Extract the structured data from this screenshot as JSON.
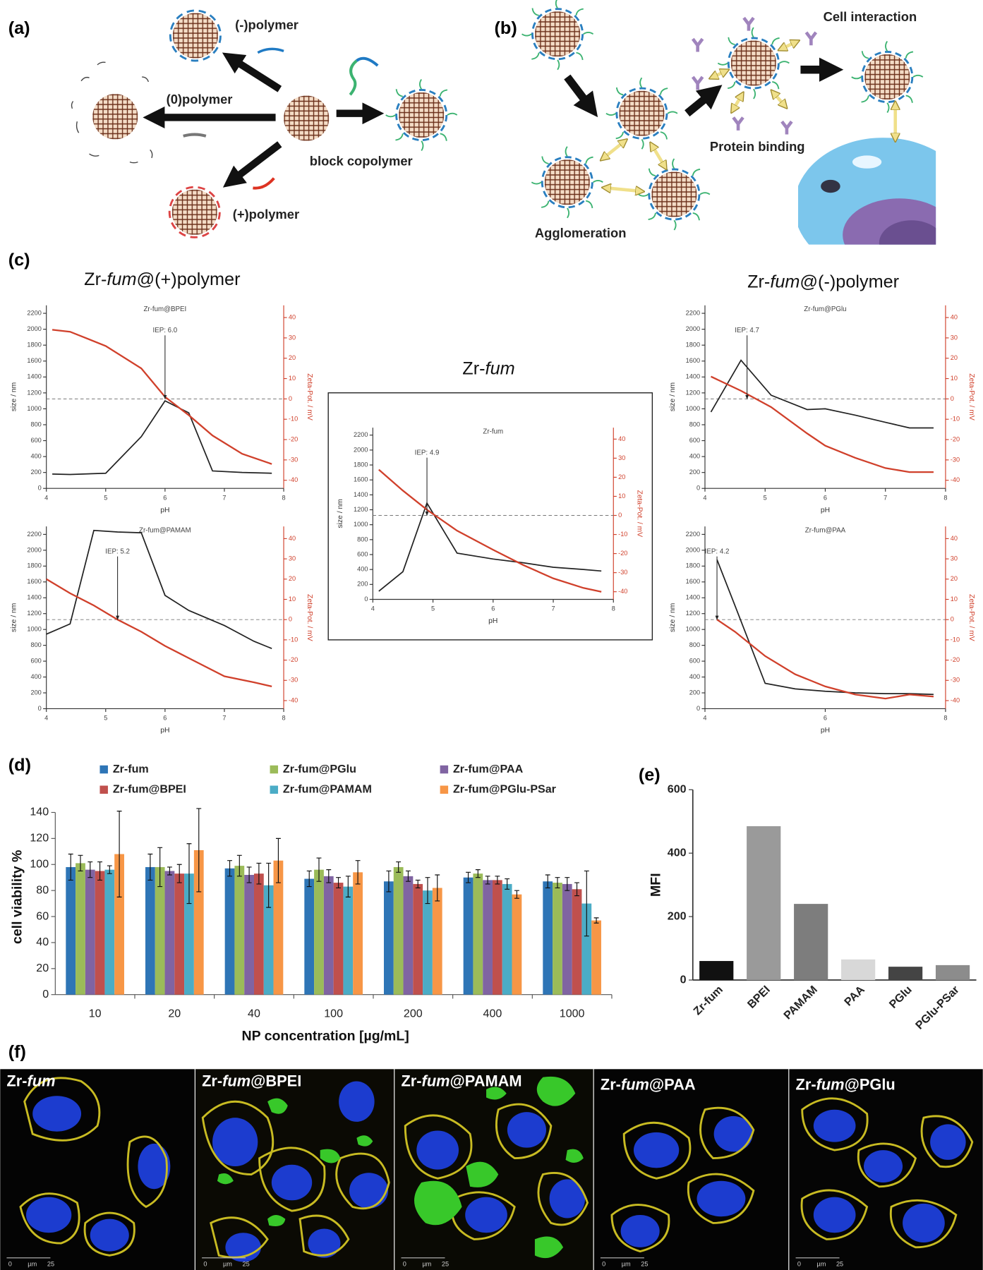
{
  "panel_labels": [
    "(a)",
    "(b)",
    "(c)",
    "(d)",
    "(e)",
    "(f)"
  ],
  "diagram_a": {
    "labels": [
      "(-)polymer",
      "(0)polymer",
      "block copolymer",
      "(+)polymer"
    ]
  },
  "diagram_b": {
    "labels": [
      "Cell interaction",
      "Protein binding",
      "Agglomeration"
    ]
  },
  "panel_c": {
    "headings": [
      [
        "Zr-",
        "fum",
        "@(+)polymer"
      ],
      [
        "Zr-",
        "fum"
      ],
      [
        "Zr-",
        "fum",
        "@(-)polymer"
      ]
    ]
  },
  "chart_data": [
    {
      "type": "line",
      "title": "Zr-fum@BPEI",
      "xlabel": "pH",
      "ylabel": "size / nm",
      "y2label": "Zeta-Pot. / mV",
      "x": [
        4.1,
        4.4,
        5.0,
        5.6,
        6.0,
        6.4,
        6.8,
        7.3,
        7.8
      ],
      "series": [
        {
          "color": "#222222",
          "values": [
            180,
            175,
            190,
            650,
            1100,
            950,
            220,
            200,
            190
          ]
        },
        {
          "color": "#d0402b",
          "axis": "y2",
          "values": [
            34,
            33,
            26,
            15,
            1,
            -8,
            -18,
            -27,
            -32
          ]
        }
      ],
      "xlim": [
        4,
        8
      ],
      "xticks": [
        4,
        5,
        6,
        7,
        8
      ],
      "ylim": [
        0,
        2300
      ],
      "yticks": [
        0,
        200,
        400,
        600,
        800,
        1000,
        1200,
        1400,
        1600,
        1800,
        2000,
        2200
      ],
      "y2lim": [
        -44,
        46
      ],
      "y2ticks": [
        -40,
        -30,
        -20,
        -10,
        0,
        10,
        20,
        30,
        40
      ],
      "reference_line": {
        "axis": "y2",
        "value": 0
      },
      "annotations": [
        {
          "text": "IEP: 6.0",
          "x": 6.0
        }
      ]
    },
    {
      "type": "line",
      "title": "Zr-fum@PAMAM",
      "xlabel": "pH",
      "ylabel": "size / nm",
      "y2label": "Zeta-Pot. / mV",
      "x": [
        4.0,
        4.4,
        4.8,
        5.2,
        5.6,
        6.0,
        6.4,
        7.0,
        7.5,
        7.8
      ],
      "series": [
        {
          "color": "#222222",
          "values": [
            940,
            1070,
            2250,
            2230,
            2220,
            1430,
            1240,
            1050,
            850,
            760
          ]
        },
        {
          "color": "#d0402b",
          "axis": "y2",
          "values": [
            20,
            13,
            7,
            0,
            -6,
            -13,
            -19,
            -28,
            -31,
            -33
          ]
        }
      ],
      "xlim": [
        4,
        8
      ],
      "xticks": [
        4,
        5,
        6,
        7,
        8
      ],
      "ylim": [
        0,
        2300
      ],
      "yticks": [
        0,
        200,
        400,
        600,
        800,
        1000,
        1200,
        1400,
        1600,
        1800,
        2000,
        2200
      ],
      "y2lim": [
        -44,
        46
      ],
      "y2ticks": [
        -40,
        -30,
        -20,
        -10,
        0,
        10,
        20,
        30,
        40
      ],
      "reference_line": {
        "axis": "y2",
        "value": 0
      },
      "annotations": [
        {
          "text": "IEP: 5.2",
          "x": 5.2
        }
      ]
    },
    {
      "type": "line",
      "title": "Zr-fum",
      "xlabel": "pH",
      "ylabel": "size / nm",
      "y2label": "Zeta-Pot. / mV",
      "x": [
        4.1,
        4.5,
        4.9,
        5.4,
        6.0,
        6.5,
        7.0,
        7.5,
        7.8
      ],
      "series": [
        {
          "color": "#222222",
          "values": [
            110,
            370,
            1290,
            620,
            540,
            490,
            430,
            400,
            380
          ]
        },
        {
          "color": "#d0402b",
          "axis": "y2",
          "values": [
            24,
            13,
            3,
            -8,
            -18,
            -26,
            -33,
            -38,
            -40
          ]
        }
      ],
      "xlim": [
        4,
        8
      ],
      "xticks": [
        4,
        5,
        6,
        7,
        8
      ],
      "ylim": [
        0,
        2300
      ],
      "yticks": [
        0,
        200,
        400,
        600,
        800,
        1000,
        1200,
        1400,
        1600,
        1800,
        2000,
        2200
      ],
      "y2lim": [
        -44,
        46
      ],
      "y2ticks": [
        -40,
        -30,
        -20,
        -10,
        0,
        10,
        20,
        30,
        40
      ],
      "reference_line": {
        "axis": "y2",
        "value": 0
      },
      "annotations": [
        {
          "text": "IEP: 4.9",
          "x": 4.9
        }
      ]
    },
    {
      "type": "line",
      "title": "Zr-fum@PGlu",
      "xlabel": "pH",
      "ylabel": "size / nm",
      "y2label": "Zeta-Pot. / mV",
      "x": [
        4.1,
        4.6,
        5.1,
        5.7,
        6.0,
        6.5,
        7.0,
        7.4,
        7.8
      ],
      "series": [
        {
          "color": "#222222",
          "values": [
            960,
            1610,
            1170,
            990,
            1000,
            920,
            830,
            760,
            760
          ]
        },
        {
          "color": "#d0402b",
          "axis": "y2",
          "values": [
            11,
            4,
            -4,
            -17,
            -23,
            -29,
            -34,
            -36,
            -36
          ]
        }
      ],
      "xlim": [
        4,
        8
      ],
      "xticks": [
        4,
        5,
        6,
        7,
        8
      ],
      "ylim": [
        0,
        2300
      ],
      "yticks": [
        0,
        200,
        400,
        600,
        800,
        1000,
        1200,
        1400,
        1600,
        1800,
        2000,
        2200
      ],
      "y2lim": [
        -44,
        46
      ],
      "y2ticks": [
        -40,
        -30,
        -20,
        -10,
        0,
        10,
        20,
        30,
        40
      ],
      "reference_line": {
        "axis": "y2",
        "value": 0
      },
      "annotations": [
        {
          "text": "IEP: 4.7",
          "x": 4.7
        }
      ]
    },
    {
      "type": "line",
      "title": "Zr-fum@PAA",
      "xlabel": "pH",
      "ylabel": "size / nm",
      "y2label": "Zeta-Pot. / mV",
      "x": [
        4.2,
        4.5,
        5.0,
        5.5,
        6.0,
        6.5,
        7.0,
        7.4,
        7.8
      ],
      "series": [
        {
          "color": "#222222",
          "values": [
            1880,
            1300,
            320,
            250,
            220,
            200,
            190,
            190,
            180
          ]
        },
        {
          "color": "#d0402b",
          "axis": "y2",
          "values": [
            0,
            -6,
            -18,
            -27,
            -33,
            -37,
            -39,
            -37,
            -38
          ]
        }
      ],
      "xlim": [
        4,
        8
      ],
      "xticks": [
        4,
        6,
        8
      ],
      "ylim": [
        0,
        2300
      ],
      "yticks": [
        0,
        200,
        400,
        600,
        800,
        1000,
        1200,
        1400,
        1600,
        1800,
        2000,
        2200
      ],
      "y2lim": [
        -44,
        46
      ],
      "y2ticks": [
        -40,
        -30,
        -20,
        -10,
        0,
        10,
        20,
        30,
        40
      ],
      "reference_line": {
        "axis": "y2",
        "value": 0
      },
      "annotations": [
        {
          "text": "IEP: 4.2",
          "x": 4.2
        }
      ]
    },
    {
      "type": "bar",
      "xlabel": "NP concentration [µg/mL]",
      "ylabel": "cell viability %",
      "categories": [
        "10",
        "20",
        "40",
        "100",
        "200",
        "400",
        "1000"
      ],
      "series": [
        {
          "name": "Zr-fum",
          "color": "#2e75b6",
          "values": [
            98,
            98,
            97,
            89,
            87,
            90,
            87
          ],
          "errors": [
            10,
            10,
            6,
            6,
            8,
            4,
            5
          ]
        },
        {
          "name": "Zr-fum@PGlu",
          "color": "#9bbb59",
          "values": [
            101,
            98,
            99,
            96,
            98,
            93,
            86
          ],
          "errors": [
            6,
            15,
            8,
            9,
            4,
            3,
            4
          ]
        },
        {
          "name": "Zr-fum@PAA",
          "color": "#8064a2",
          "values": [
            96,
            95,
            92,
            91,
            91,
            88,
            85
          ],
          "errors": [
            6,
            3,
            6,
            5,
            4,
            3,
            5
          ]
        },
        {
          "name": "Zr-fum@BPEI",
          "color": "#c0504d",
          "values": [
            95,
            93,
            93,
            86,
            85,
            88,
            81
          ],
          "errors": [
            7,
            7,
            8,
            4,
            3,
            3,
            5
          ]
        },
        {
          "name": "Zr-fum@PAMAM",
          "color": "#4bacc6",
          "values": [
            96,
            93,
            84,
            83,
            80,
            85,
            70
          ],
          "errors": [
            3,
            23,
            17,
            8,
            10,
            4,
            25
          ]
        },
        {
          "name": "Zr-fum@PGlu-PSar",
          "color": "#f79646",
          "values": [
            108,
            111,
            103,
            94,
            82,
            77,
            57
          ],
          "errors": [
            33,
            32,
            17,
            9,
            10,
            3,
            2
          ]
        }
      ],
      "ylim": [
        0,
        150
      ],
      "yticks": [
        0,
        20,
        40,
        60,
        80,
        100,
        120,
        140
      ]
    },
    {
      "type": "bar",
      "ylabel": "MFI",
      "categories": [
        "Zr-fum",
        "BPEI",
        "PAMAM",
        "PAA",
        "PGlu",
        "PGlu-PSar"
      ],
      "values": [
        60,
        485,
        240,
        65,
        42,
        47
      ],
      "colors": [
        "#111111",
        "#9a9a9a",
        "#7d7d7d",
        "#d8d8d8",
        "#444444",
        "#8c8c8c"
      ],
      "ylim": [
        0,
        600
      ],
      "yticks": [
        0,
        200,
        400,
        600
      ]
    }
  ],
  "panel_f": {
    "images": [
      [
        "Zr-",
        "fum"
      ],
      [
        "Zr-",
        "fum",
        "@BPEI"
      ],
      [
        "Zr-",
        "fum",
        "@PAMAM"
      ],
      [
        "Zr-",
        "fum",
        "@PAA"
      ],
      [
        "Zr-",
        "fum",
        "@PGlu"
      ]
    ],
    "scale_bar": [
      "0",
      "µm",
      "25"
    ]
  }
}
